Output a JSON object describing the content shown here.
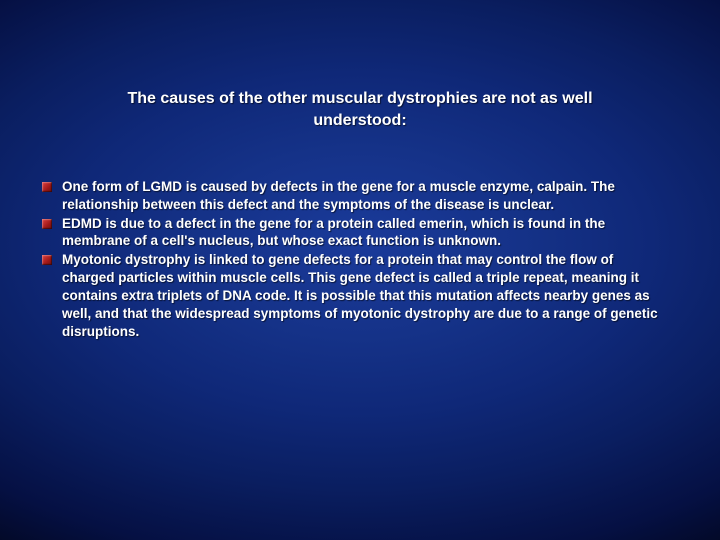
{
  "slide": {
    "background": {
      "gradient_center": "#1a3a9a",
      "gradient_mid": "#0f2878",
      "gradient_edge": "#020720"
    },
    "title": {
      "text": "The causes of the other muscular dystrophies are not as well understood:",
      "color": "#ffffff",
      "font_size_pt": 16,
      "font_weight": "bold"
    },
    "bullets": {
      "marker_color_light": "#e04040",
      "marker_color_dark": "#701010",
      "text_color": "#ffffff",
      "font_size_pt": 13.5,
      "font_weight": "bold",
      "items": [
        {
          "text": "One form of LGMD is caused by defects in the gene for a muscle enzyme, calpain. The relationship between this defect and the symptoms of the disease is unclear."
        },
        {
          "text": "EDMD is due to a defect in the gene for a protein called emerin, which is found in the membrane of a cell's nucleus, but whose exact function is unknown."
        },
        {
          "text": "Myotonic dystrophy is linked to gene defects for a protein that may control the flow of charged particles within muscle cells. This gene defect is called a triple repeat, meaning it contains extra triplets of DNA code. It is possible that this mutation affects nearby genes as well, and that the widespread symptoms of myotonic dystrophy are due to a range of genetic disruptions."
        }
      ]
    }
  }
}
